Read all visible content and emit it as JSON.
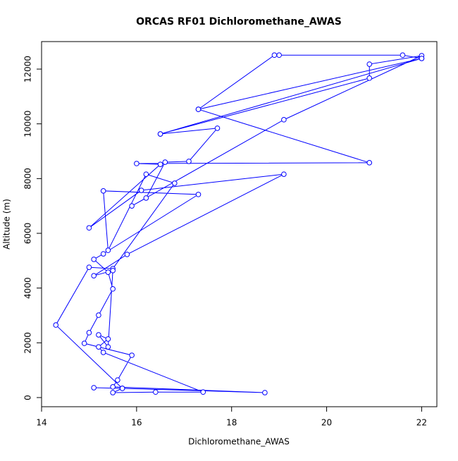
{
  "chart_data": {
    "type": "line",
    "title": "ORCAS RF01 Dichloromethane_AWAS",
    "x_label": "Dichloromethane_AWAS",
    "y_label": "Altitude (m)",
    "series": [
      {
        "color": "#0000ff",
        "x": [
          15.1,
          15.7,
          18.7,
          15.5,
          15.6,
          15.9,
          14.9,
          15.0,
          15.2,
          15.5,
          15.4,
          15.1,
          15.3,
          17.3,
          15.3,
          15.4,
          16.2,
          16.8,
          15.5,
          15.0,
          14.3,
          15.7,
          15.5,
          16.4,
          17.4,
          15.3,
          15.2,
          15.4,
          15.2,
          15.4,
          15.5,
          15.1,
          15.8,
          19.1,
          16.1,
          15.0,
          16.5,
          16.0,
          20.9,
          17.3,
          22.0,
          16.5,
          20.9,
          20.9,
          22.0,
          19.1,
          15.9,
          16.2,
          16.6,
          17.1,
          17.7,
          16.5,
          22.0,
          21.6,
          19.0,
          18.9,
          17.3
        ],
        "values": [
          360,
          335,
          180,
          390,
          640,
          1545,
          1980,
          2370,
          3010,
          3970,
          4580,
          5050,
          5250,
          7420,
          7550,
          5380,
          8160,
          7830,
          4710,
          4760,
          2650,
          335,
          180,
          200,
          200,
          1650,
          1850,
          2140,
          2290,
          1850,
          4640,
          4450,
          5230,
          8160,
          7570,
          6200,
          8520,
          8550,
          8580,
          10530,
          12390,
          9630,
          11670,
          12180,
          12490,
          10150,
          7000,
          7290,
          8600,
          8630,
          9840,
          9630,
          12390,
          12510,
          12510,
          12510,
          10530
        ]
      }
    ],
    "xlim": [
      14,
      22.32
    ],
    "ylim": [
      -335,
      13005
    ],
    "xticks": [
      14,
      16,
      18,
      20,
      22
    ],
    "yticks": [
      0,
      2000,
      4000,
      6000,
      8000,
      10000,
      12000
    ]
  }
}
